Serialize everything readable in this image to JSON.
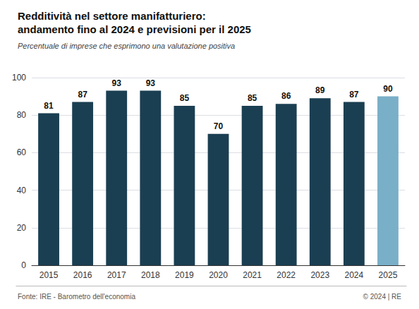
{
  "chart_data": {
    "type": "bar",
    "title": "Redditività nel settore manifatturiero:\nandamento fino al 2024 e previsioni per il 2025",
    "subtitle": "Percentuale di imprese che esprimono una valutazione positiva",
    "categories": [
      "2015",
      "2016",
      "2017",
      "2018",
      "2019",
      "2020",
      "2021",
      "2022",
      "2023",
      "2024",
      "2025"
    ],
    "values": [
      81,
      87,
      93,
      93,
      85,
      70,
      85,
      86,
      89,
      87,
      90
    ],
    "colors": [
      "#1b3f52",
      "#1b3f52",
      "#1b3f52",
      "#1b3f52",
      "#1b3f52",
      "#1b3f52",
      "#1b3f52",
      "#1b3f52",
      "#1b3f52",
      "#1b3f52",
      "#7aafc8"
    ],
    "ylim": [
      0,
      100
    ],
    "yticks": [
      0,
      20,
      40,
      60,
      80,
      100
    ],
    "grid": true,
    "data_labels": true,
    "annotations": [
      "Fonte: IRE - Barometro dell'economia",
      "© 2024 | RE"
    ]
  }
}
